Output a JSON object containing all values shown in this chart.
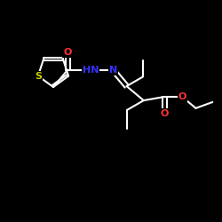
{
  "background_color": "#000000",
  "bond_color": "#ffffff",
  "atom_colors": {
    "S": "#cccc00",
    "O": "#ff3333",
    "N": "#3333ff",
    "H": "#ffffff",
    "C": "#ffffff"
  },
  "figsize": [
    2.5,
    2.5
  ],
  "dpi": 100,
  "xlim": [
    0,
    10
  ],
  "ylim": [
    0,
    10
  ]
}
